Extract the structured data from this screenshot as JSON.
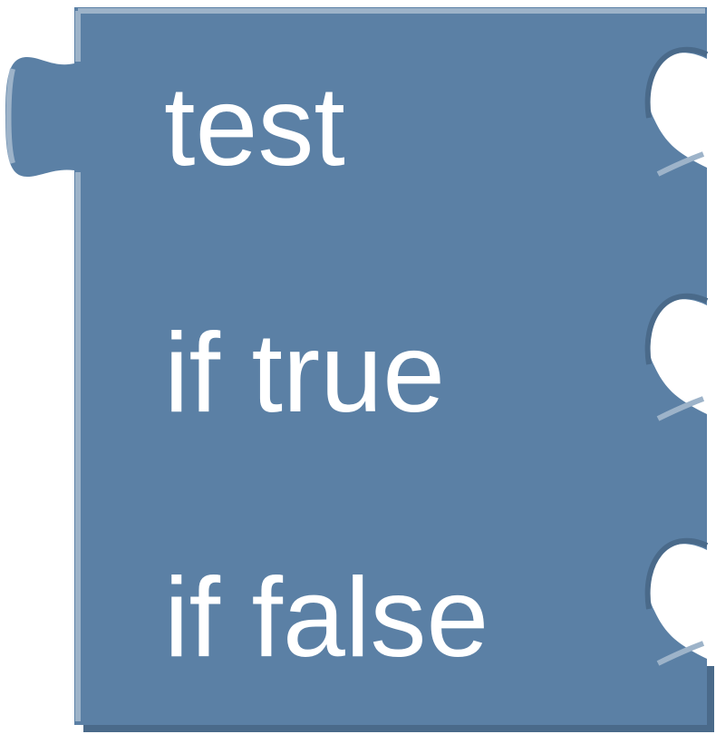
{
  "block": {
    "type": "ternary-if-block",
    "color": "#5b80a5",
    "highlight_color": "#9db3c9",
    "shadow_color": "#4a6a8a",
    "inputs": [
      {
        "label": "test"
      },
      {
        "label": "if true"
      },
      {
        "label": "if false"
      }
    ]
  }
}
